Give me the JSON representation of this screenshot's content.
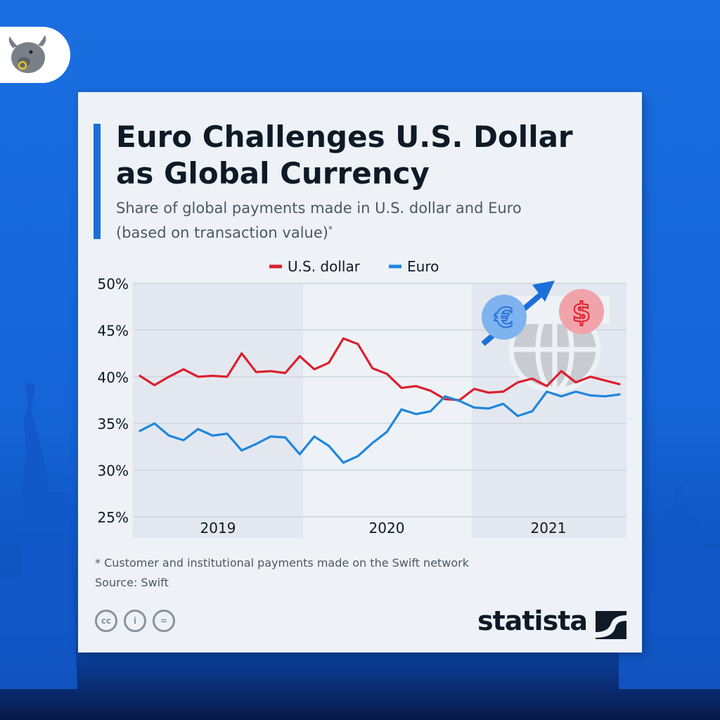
{
  "header": {
    "title": "Euro Challenges U.S. Dollar as Global Currency",
    "subtitle": "Share of global payments made in U.S. dollar and Euro (based on transaction value)",
    "subtitle_mark": "*"
  },
  "colors": {
    "background": "#1565d8",
    "card": "#eef2f6",
    "accent": "#1b6fd8",
    "usd": "#dc1f2e",
    "euro": "#1f86dd",
    "shade": "#e3e8f0"
  },
  "icons": [
    "bull-logo-icon",
    "globe-currency-icon",
    "euro-coin-icon",
    "dollar-coin-icon",
    "up-arrow-icon",
    "cc-icon",
    "by-icon",
    "nd-icon",
    "statista-mark-icon"
  ],
  "chart_data": {
    "type": "line",
    "ylim": [
      25,
      50
    ],
    "yticks": [
      "50%",
      "45%",
      "40%",
      "35%",
      "30%",
      "25%"
    ],
    "ytick_values": [
      50,
      45,
      40,
      35,
      30,
      25
    ],
    "year_labels": [
      "2019",
      "2020",
      "2021"
    ],
    "legend": [
      "U.S. dollar",
      "Euro"
    ],
    "legend_position": "top-center",
    "grid": "horizontal",
    "x": [
      "2019-01",
      "2019-02",
      "2019-03",
      "2019-04",
      "2019-05",
      "2019-06",
      "2019-07",
      "2019-08",
      "2019-09",
      "2019-10",
      "2019-11",
      "2019-12",
      "2020-01",
      "2020-02",
      "2020-03",
      "2020-04",
      "2020-05",
      "2020-06",
      "2020-07",
      "2020-08",
      "2020-09",
      "2020-10",
      "2020-11",
      "2020-12",
      "2021-01",
      "2021-02",
      "2021-03",
      "2021-04",
      "2021-05",
      "2021-06",
      "2021-07",
      "2021-08",
      "2021-09",
      "2021-10"
    ],
    "series": [
      {
        "name": "U.S. dollar",
        "color": "#dc1f2e",
        "values": [
          40.1,
          39.1,
          40.0,
          40.8,
          40.0,
          40.1,
          40.0,
          42.5,
          40.5,
          40.6,
          40.4,
          42.2,
          40.8,
          41.5,
          44.1,
          43.5,
          40.9,
          40.3,
          38.8,
          39.0,
          38.5,
          37.6,
          37.5,
          38.7,
          38.3,
          38.4,
          39.4,
          39.8,
          39.0,
          40.6,
          39.4,
          40.0,
          39.6,
          39.2
        ]
      },
      {
        "name": "Euro",
        "color": "#1f86dd",
        "values": [
          34.2,
          35.0,
          33.7,
          33.2,
          34.4,
          33.7,
          33.9,
          32.1,
          32.8,
          33.6,
          33.5,
          31.7,
          33.6,
          32.6,
          30.8,
          31.5,
          32.9,
          34.1,
          36.5,
          36.0,
          36.3,
          37.9,
          37.4,
          36.7,
          36.6,
          37.1,
          35.8,
          36.3,
          38.4,
          37.9,
          38.4,
          38.0,
          37.9,
          38.1
        ]
      }
    ]
  },
  "footer": {
    "footnote": "* Customer and institutional payments made on the Swift network",
    "source": "Source: Swift",
    "cc_labels": [
      "cc",
      "i",
      "="
    ],
    "brand": "statista"
  }
}
